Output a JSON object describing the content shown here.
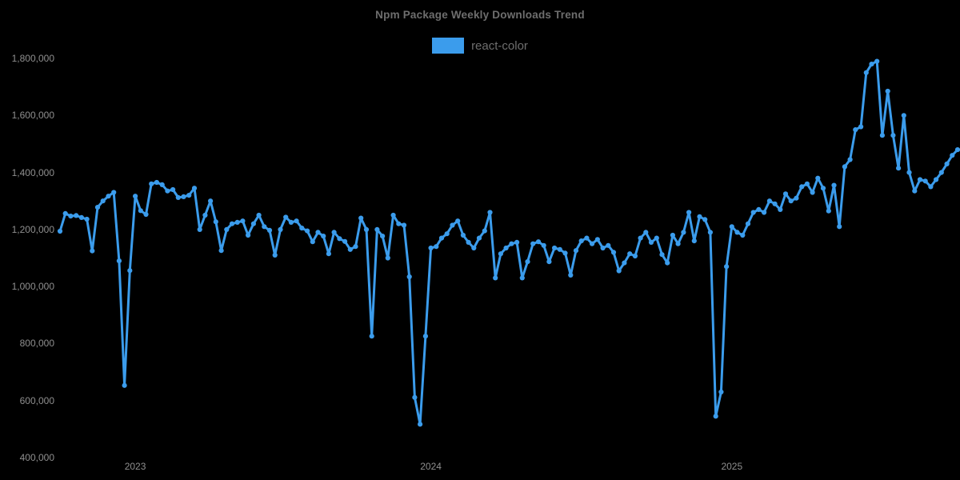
{
  "chart_data": {
    "type": "line",
    "title": "Npm Package Weekly Downloads Trend",
    "legend_position": "top",
    "grid": false,
    "background_color": "#000000",
    "title_color": "#6e6e6e",
    "axis_text_color": "#8f8f8f",
    "xlabel": "",
    "ylabel": "",
    "y_axis": {
      "min": 400000,
      "max": 1800000,
      "tick_step": 200000,
      "tick_labels": [
        "400,000",
        "600,000",
        "800,000",
        "1,000,000",
        "1,200,000",
        "1,400,000",
        "1,600,000",
        "1,800,000"
      ]
    },
    "x_axis": {
      "unit": "week",
      "year_ticks": [
        {
          "label": "2023",
          "index": 14
        },
        {
          "label": "2024",
          "index": 69
        },
        {
          "label": "2025",
          "index": 125
        }
      ]
    },
    "series": [
      {
        "name": "react-color",
        "color": "#3b9cec",
        "values": [
          1194000,
          1256000,
          1247000,
          1249000,
          1242000,
          1236000,
          1125000,
          1278000,
          1300000,
          1317000,
          1330000,
          1090000,
          653000,
          1056000,
          1317000,
          1266000,
          1253000,
          1360000,
          1365000,
          1357000,
          1335000,
          1340000,
          1312000,
          1315000,
          1320000,
          1345000,
          1200000,
          1250000,
          1300000,
          1227000,
          1126000,
          1200000,
          1220000,
          1225000,
          1230000,
          1180000,
          1220000,
          1250000,
          1210000,
          1197000,
          1110000,
          1200000,
          1243000,
          1225000,
          1230000,
          1205000,
          1195000,
          1157000,
          1190000,
          1177000,
          1115000,
          1190000,
          1168000,
          1158000,
          1130000,
          1140000,
          1240000,
          1200000,
          826000,
          1200000,
          1177000,
          1100000,
          1250000,
          1220000,
          1215000,
          1034000,
          611000,
          517000,
          826000,
          1135000,
          1140000,
          1170000,
          1185000,
          1215000,
          1230000,
          1180000,
          1155000,
          1135000,
          1170000,
          1195000,
          1260000,
          1030000,
          1115000,
          1135000,
          1150000,
          1155000,
          1030000,
          1087000,
          1150000,
          1157000,
          1144000,
          1087000,
          1135000,
          1130000,
          1117000,
          1040000,
          1126000,
          1160000,
          1170000,
          1150000,
          1165000,
          1135000,
          1144000,
          1120000,
          1055000,
          1083000,
          1115000,
          1107000,
          1170000,
          1190000,
          1155000,
          1170000,
          1112000,
          1083000,
          1180000,
          1150000,
          1190000,
          1260000,
          1160000,
          1245000,
          1235000,
          1190000,
          545000,
          630000,
          1070000,
          1210000,
          1190000,
          1180000,
          1220000,
          1260000,
          1270000,
          1260000,
          1300000,
          1290000,
          1270000,
          1325000,
          1300000,
          1310000,
          1350000,
          1360000,
          1330000,
          1380000,
          1345000,
          1265000,
          1355000,
          1210000,
          1420000,
          1445000,
          1550000,
          1560000,
          1750000,
          1780000,
          1790000,
          1530000,
          1685000,
          1530000,
          1415000,
          1600000,
          1400000,
          1335000,
          1375000,
          1370000,
          1350000,
          1375000,
          1400000,
          1430000,
          1460000,
          1480000
        ]
      }
    ]
  }
}
